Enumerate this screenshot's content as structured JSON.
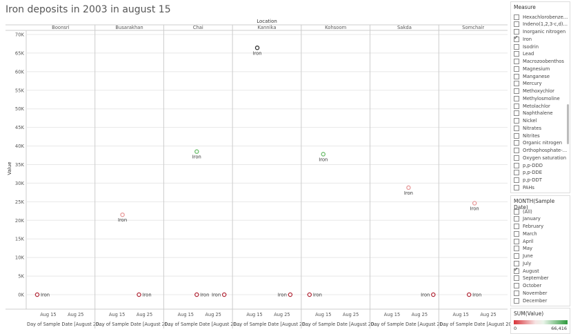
{
  "title": "Iron deposits in 2003 in august 15",
  "colors": {
    "positive": "#3c9a3c",
    "negative": "#c23b3b",
    "zero": "#333333",
    "grid": "#e8e8e8"
  },
  "chart_data": {
    "type": "scatter",
    "column_header": "Location",
    "columns": [
      "Boonsri",
      "Busarakhan",
      "Chai",
      "Kannika",
      "Kohsoom",
      "Sakda",
      "Somchair"
    ],
    "ylabel": "Value",
    "ylim": [
      0,
      70000
    ],
    "y_ticks": [
      0,
      5000,
      10000,
      15000,
      20000,
      25000,
      30000,
      35000,
      40000,
      45000,
      50000,
      55000,
      60000,
      65000,
      70000
    ],
    "y_tick_labels": [
      "0K",
      "5K",
      "10K",
      "15K",
      "20K",
      "25K",
      "30K",
      "35K",
      "40K",
      "45K",
      "50K",
      "55K",
      "60K",
      "65K",
      "70K"
    ],
    "x_tick_labels": [
      "Aug 15",
      "Aug 25"
    ],
    "x_axis_label": "Day of Sample Date [August 20...",
    "point_label": "Iron",
    "points": [
      {
        "location": "Boonsri",
        "day": 11,
        "value": 0
      },
      {
        "location": "Busarakhan",
        "day": 17,
        "value": 21500
      },
      {
        "location": "Busarakhan",
        "day": 23,
        "value": 0
      },
      {
        "location": "Chai",
        "day": 19,
        "value": 38500
      },
      {
        "location": "Chai",
        "day": 19,
        "value": 0
      },
      {
        "location": "Chai",
        "day": 29,
        "value": 0
      },
      {
        "location": "Kannika",
        "day": 16,
        "value": 66416
      },
      {
        "location": "Kannika",
        "day": 28,
        "value": 0
      },
      {
        "location": "Kohsoom",
        "day": 10,
        "value": 0
      },
      {
        "location": "Kohsoom",
        "day": 15,
        "value": 37800
      },
      {
        "location": "Sakda",
        "day": 21,
        "value": 28800
      },
      {
        "location": "Sakda",
        "day": 30,
        "value": 0
      },
      {
        "location": "Somchair",
        "day": 20,
        "value": 24600
      },
      {
        "location": "Somchair",
        "day": 18,
        "value": 0
      }
    ],
    "color_legend": {
      "title": "SUM(Value)",
      "min_label": "0",
      "max_label": "66,416"
    }
  },
  "measure_filter": {
    "title": "Measure",
    "items": [
      {
        "label": "Hexachlorobenze...",
        "checked": false
      },
      {
        "label": "Indeno(1,2,3-c,d)...",
        "checked": false
      },
      {
        "label": "Inorganic nitrogen",
        "checked": false
      },
      {
        "label": "Iron",
        "checked": true
      },
      {
        "label": "Isodrin",
        "checked": false
      },
      {
        "label": "Lead",
        "checked": false
      },
      {
        "label": "Macrozoobenthos",
        "checked": false
      },
      {
        "label": "Magnesium",
        "checked": false
      },
      {
        "label": "Manganese",
        "checked": false
      },
      {
        "label": "Mercury",
        "checked": false
      },
      {
        "label": "Methoxychlor",
        "checked": false
      },
      {
        "label": "Methylosmoline",
        "checked": false
      },
      {
        "label": "Metolachlor",
        "checked": false
      },
      {
        "label": "Naphthalene",
        "checked": false
      },
      {
        "label": "Nickel",
        "checked": false
      },
      {
        "label": "Nitrates",
        "checked": false
      },
      {
        "label": "Nitrites",
        "checked": false
      },
      {
        "label": "Organic nitrogen",
        "checked": false
      },
      {
        "label": "Orthophosphate-...",
        "checked": false
      },
      {
        "label": "Oxygen saturation",
        "checked": false
      },
      {
        "label": "p,p-DDD",
        "checked": false
      },
      {
        "label": "p,p-DDE",
        "checked": false
      },
      {
        "label": "p,p-DDT",
        "checked": false
      },
      {
        "label": "PAHs",
        "checked": false
      }
    ]
  },
  "month_filter": {
    "title": "MONTH(Sample Date)",
    "items": [
      {
        "label": "(All)",
        "checked": false
      },
      {
        "label": "January",
        "checked": false
      },
      {
        "label": "February",
        "checked": false
      },
      {
        "label": "March",
        "checked": false
      },
      {
        "label": "April",
        "checked": false
      },
      {
        "label": "May",
        "checked": false
      },
      {
        "label": "June",
        "checked": false
      },
      {
        "label": "July",
        "checked": false
      },
      {
        "label": "August",
        "checked": true
      },
      {
        "label": "September",
        "checked": false
      },
      {
        "label": "October",
        "checked": false
      },
      {
        "label": "November",
        "checked": false
      },
      {
        "label": "December",
        "checked": false
      }
    ]
  }
}
